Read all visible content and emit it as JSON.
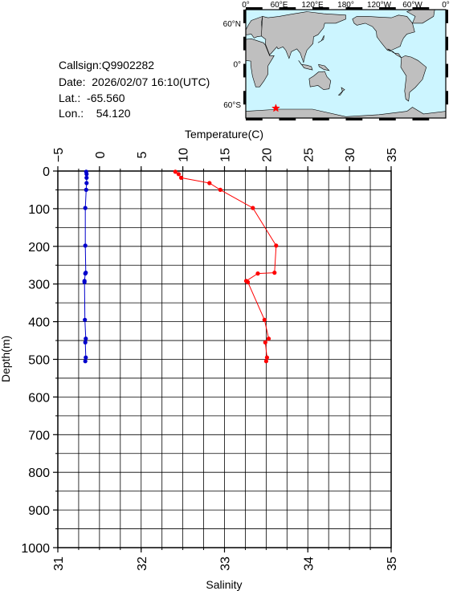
{
  "station": {
    "callsign_label": "Callsign:",
    "callsign": "Q9902282",
    "date_label": "Date:",
    "date": "2026/02/07 16:10(UTC)",
    "lat_label": "Lat.:",
    "lat": "-65.560",
    "lon_label": "Lon.:",
    "lon": "54.120"
  },
  "map": {
    "top_labels": [
      "0°",
      "60°E",
      "120°E",
      "180°",
      "120°W",
      "60°W",
      "0°"
    ],
    "left_labels": [
      "60°N",
      "0°",
      "60°S"
    ],
    "ocean_color": "#ccf5ff",
    "land_color": "#bfbfbf",
    "marker_color": "#ff0000",
    "marker": {
      "lon": 54.12,
      "lat": -65.56
    }
  },
  "chart_data": {
    "type": "line",
    "ylabel": "Depth(m)",
    "y_ticks": [
      "0",
      "100",
      "200",
      "300",
      "400",
      "500",
      "600",
      "700",
      "800",
      "900",
      "1000"
    ],
    "ylim": [
      1000,
      0
    ],
    "temperature_axis": {
      "label": "Temperature(C)",
      "xlim": [
        -5,
        35
      ],
      "ticks": [
        "−5",
        "0",
        "5",
        "10",
        "15",
        "20",
        "25",
        "30",
        "35"
      ]
    },
    "salinity_axis": {
      "label": "Salinity",
      "xlim": [
        31,
        35
      ],
      "ticks": [
        "31",
        "32",
        "33",
        "34",
        "35"
      ]
    },
    "grid": true,
    "series": [
      {
        "axis": "temperature",
        "color": "#ff0000",
        "points": [
          {
            "x": 9.1,
            "y": 2
          },
          {
            "x": 9.5,
            "y": 8
          },
          {
            "x": 9.8,
            "y": 18
          },
          {
            "x": 13.2,
            "y": 32
          },
          {
            "x": 14.5,
            "y": 50
          },
          {
            "x": 18.4,
            "y": 98
          },
          {
            "x": 21.2,
            "y": 198
          },
          {
            "x": 21.0,
            "y": 270
          },
          {
            "x": 19.0,
            "y": 272
          },
          {
            "x": 17.6,
            "y": 292
          },
          {
            "x": 17.8,
            "y": 295
          },
          {
            "x": 19.8,
            "y": 395
          },
          {
            "x": 20.3,
            "y": 445
          },
          {
            "x": 19.9,
            "y": 455
          },
          {
            "x": 20.1,
            "y": 495
          },
          {
            "x": 20.0,
            "y": 505
          }
        ]
      },
      {
        "axis": "salinity",
        "color": "#0000cc",
        "points": [
          {
            "x": 31.34,
            "y": 2
          },
          {
            "x": 31.345,
            "y": 8
          },
          {
            "x": 31.345,
            "y": 18
          },
          {
            "x": 31.345,
            "y": 32
          },
          {
            "x": 31.34,
            "y": 50
          },
          {
            "x": 31.33,
            "y": 98
          },
          {
            "x": 31.33,
            "y": 198
          },
          {
            "x": 31.335,
            "y": 270
          },
          {
            "x": 31.33,
            "y": 272
          },
          {
            "x": 31.32,
            "y": 292
          },
          {
            "x": 31.32,
            "y": 295
          },
          {
            "x": 31.325,
            "y": 395
          },
          {
            "x": 31.335,
            "y": 445
          },
          {
            "x": 31.33,
            "y": 455
          },
          {
            "x": 31.335,
            "y": 495
          },
          {
            "x": 31.33,
            "y": 505
          }
        ]
      }
    ]
  }
}
